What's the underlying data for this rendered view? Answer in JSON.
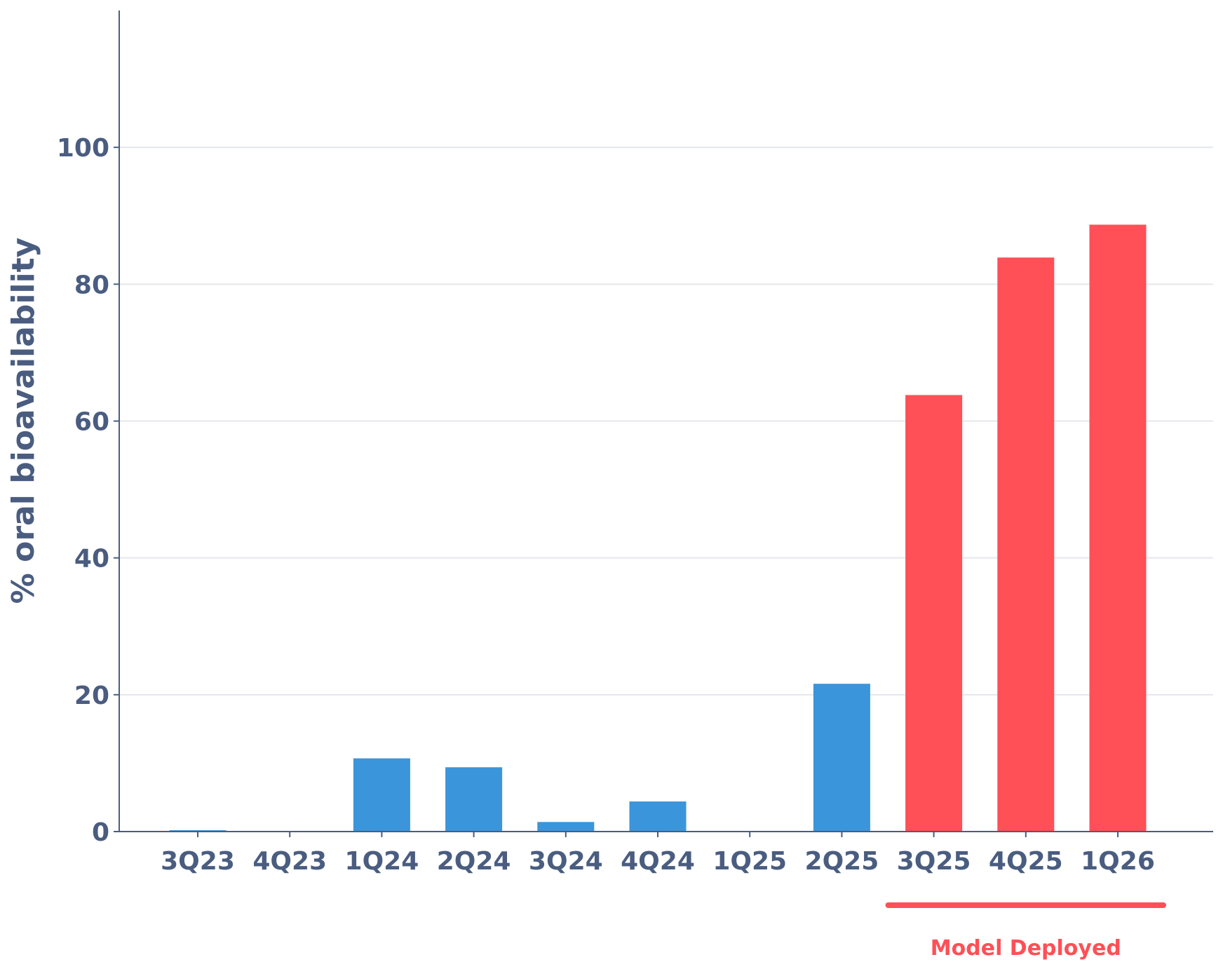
{
  "chart_data": {
    "type": "bar",
    "title": "",
    "xlabel": "",
    "ylabel": "% oral bioavailability",
    "categories": [
      "3Q23",
      "4Q23",
      "1Q24",
      "2Q24",
      "3Q24",
      "4Q24",
      "1Q25",
      "2Q25",
      "3Q25",
      "4Q25",
      "1Q26"
    ],
    "values": [
      0.2,
      0,
      10.7,
      9.4,
      1.4,
      4.4,
      0,
      21.6,
      63.8,
      83.9,
      88.7
    ],
    "highlight_from_index": 8,
    "colors": {
      "base": "#3a95db",
      "highlight": "#ff4f57",
      "axis": "#4a5d80",
      "grid": "#e4e7ec"
    },
    "ylim": [
      0,
      120
    ],
    "yticks": [
      0,
      20,
      40,
      60,
      80,
      100
    ],
    "grid": true,
    "annotation": {
      "text": "Model Deployed",
      "from_category": "3Q25",
      "to_category": "1Q26"
    }
  }
}
